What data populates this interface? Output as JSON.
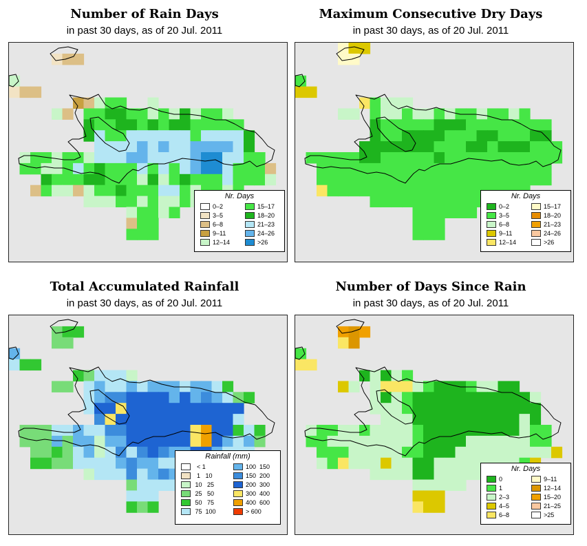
{
  "panels": [
    {
      "title": "Number of Rain Days",
      "subtitle": "in past 30 days, as of  20 Jul. 2011",
      "legend": {
        "title": "Nr. Days",
        "entries": [
          {
            "label": "0–2",
            "color": "#ffffff"
          },
          {
            "label": "3–5",
            "color": "#f2e3c4"
          },
          {
            "label": "6–8",
            "color": "#dcbf86"
          },
          {
            "label": "9–11",
            "color": "#c8a040"
          },
          {
            "label": "12–14",
            "color": "#c8f5c8"
          },
          {
            "label": "15–17",
            "color": "#46e646"
          },
          {
            "label": "18–20",
            "color": "#1eb41e"
          },
          {
            "label": "21–23",
            "color": "#b4e6f5"
          },
          {
            "label": "24–26",
            "color": "#64b4eb"
          },
          {
            "label": ">26",
            "color": "#1e8cd2"
          }
        ]
      },
      "palette": {
        "g": "#46e646",
        "G": "#1eb41e",
        "l": "#c8f5c8",
        "b": "#b4e6f5",
        "B": "#64b4eb",
        "D": "#1e8cd2",
        "t": "#f2e3c4",
        "T": "#dcbf86",
        "o": "#c8a040"
      },
      "grid": [
        "..........................",
        "....tTT...................",
        "..........................",
        "l.........................",
        "tTT.......................",
        "......oTlgg..l............",
        "....lT.ggGGgglglGlggl.....",
        ".......GggGGgGgGGggggg....",
        ".......GbggbbbbbbgbbbbG...",
        "........bbbbBbBbbBBBBbG...",
        ".lgglgglbbbBBbbbbBDDbbgg..",
        ".ggllgbgGgggbgbgbBDDbgggT.",
        "...GgggGGggglGlgGgggbgggl.",
        "..TgllTlggGgggbbglgglg....",
        ".......lllgglgllglg.......",
        "...........lgglg..........",
        "...........Tgg............",
        "...........ggg............",
        "..........................",
        ".........................."
      ]
    },
    {
      "title": "Maximum Consecutive Dry Days",
      "subtitle": "in past 30 days, as of  20 Jul. 2011",
      "legend": {
        "title": "Nr. Days",
        "entries": [
          {
            "label": "0–2",
            "color": "#1eb41e"
          },
          {
            "label": "3–5",
            "color": "#46e646"
          },
          {
            "label": "6–8",
            "color": "#c8f5c8"
          },
          {
            "label": "9–11",
            "color": "#dcc800"
          },
          {
            "label": "12–14",
            "color": "#fae664"
          },
          {
            "label": "15–17",
            "color": "#fffac8"
          },
          {
            "label": "18–20",
            "color": "#e68c00"
          },
          {
            "label": "21–23",
            "color": "#f0a000"
          },
          {
            "label": "24–26",
            "color": "#fac8a0"
          },
          {
            "label": ">26",
            "color": "#ffffff"
          }
        ]
      },
      "palette": {
        "g": "#46e646",
        "G": "#1eb41e",
        "l": "#c8f5c8",
        "y": "#dcc800",
        "Y": "#fae664",
        "p": "#fffac8"
      },
      "grid": [
        "....pyy...................",
        "....pp....................",
        "..........................",
        "g.........................",
        "yy........................",
        "......Yglll...............",
        "....ll.gllgllglgglgglg....",
        ".......GgggggGGGgggggggg..",
        ".......GggGGGGgggGGgggGG..",
        "......GGGGGGGgggGGgGGGggg.",
        ".gggggGGgggggGggggggggggg.",
        "..gggggggggggggggggggggg..",
        "..gggggggggggggggggggggg..",
        "..Yggggggggggggggggggg....",
        ".......gggggggggggggg.....",
        "...........gggggg.........",
        "...........ggg............",
        "...........ggg............",
        "..........................",
        ".........................."
      ]
    },
    {
      "title": "Total Accumulated Rainfall",
      "subtitle": "in past 30 days, as of  20 Jul. 2011",
      "legend": {
        "title": "Rainfall (mm)",
        "entries": [
          {
            "label": "  < 1",
            "color": "#ffffff"
          },
          {
            "label": "  1   10",
            "color": "#f2e3c4"
          },
          {
            "label": " 10   25",
            "color": "#c8f5c8"
          },
          {
            "label": " 25   50",
            "color": "#78dc78"
          },
          {
            "label": " 50   75",
            "color": "#32c832"
          },
          {
            "label": " 75  100",
            "color": "#b4e6f5"
          },
          {
            "label": "100  150",
            "color": "#64b4eb"
          },
          {
            "label": "150  200",
            "color": "#3c8cdc"
          },
          {
            "label": "200  300",
            "color": "#1e64d2"
          },
          {
            "label": "300  400",
            "color": "#fae664"
          },
          {
            "label": "400  600",
            "color": "#f0a000"
          },
          {
            "label": "> 600",
            "color": "#f03c00"
          }
        ]
      },
      "palette": {
        "m": "#78dc78",
        "g": "#32c832",
        "l": "#c8f5c8",
        "b": "#b4e6f5",
        "B": "#64b4eb",
        "C": "#3c8cdc",
        "D": "#1e64d2",
        "y": "#fae664",
        "o": "#f0a000"
      },
      "grid": [
        "..........................",
        "....mgg...................",
        "....mm....................",
        "B.........................",
        "bgg.......................",
        "......gmbbbl..............",
        "....mm.bBbbBbBBBbBBbg.....",
        ".......bBCCDDDDBDBCBbmg...",
        ".......bDDyDDDDDDDDDDD....",
        "........CyDDDDDDDDDDDb....",
        ".mmmbbBbbCCDDDDDDyoDDgbg..",
        ".mmmBmBBlBBDDDDDDyoDBbBm..",
        "..mmgmbBlbCbCDCBBDDBbbb...",
        "..ggmmbbbbBCBBbbCBBb......",
        ".......lbbbCbBCBbbb.......",
        "...........mbbbb..........",
        "...........bbb............",
        "...........gmg............",
        "..........................",
        ".........................."
      ]
    },
    {
      "title": "Number of Days Since Rain",
      "subtitle": "in past 30 days, as of  20 Jul. 2011",
      "legend": {
        "title": "Nr. Days",
        "entries": [
          {
            "label": "0",
            "color": "#1eb41e"
          },
          {
            "label": "1",
            "color": "#46e646"
          },
          {
            "label": "2–3",
            "color": "#c8f5c8"
          },
          {
            "label": "4–5",
            "color": "#dcc800"
          },
          {
            "label": "6–8",
            "color": "#fae664"
          },
          {
            "label": "9–11",
            "color": "#fffac8"
          },
          {
            "label": "12–14",
            "color": "#dc9600"
          },
          {
            "label": "15–20",
            "color": "#f0a000"
          },
          {
            "label": "21–25",
            "color": "#fac8a0"
          },
          {
            "label": ">25",
            "color": "#ffffff"
          }
        ]
      },
      "palette": {
        "g": "#46e646",
        "G": "#1eb41e",
        "l": "#c8f5c8",
        "y": "#dcc800",
        "Y": "#fae664",
        "o": "#dc9600",
        "O": "#f0a000"
      },
      "grid": [
        "..........................",
        "....OoO...................",
        "....Yo....................",
        "g.........................",
        "YY........................",
        "......GlGlg...............",
        "....yl.lYYYlgGGGgllGG.....",
        ".......lGlgGGGGGGGGGGGl...",
        ".......lllgGGGGGGGGGGGG...",
        "........lllGGGGGGGGGGlG...",
        ".lggllgllllgGGGGGGGGGlgg..",
        ".ggllllllllgGGGGllllllgg..",
        "..ggglllllggGGGllllllllly.",
        "..lgYlllyllGGllllllllgy...",
        ".......llllGGllllllll.....",
        "...........lllll..........",
        "...........yyy............",
        "...........Yyy............",
        "..........................",
        ".........................."
      ]
    }
  ]
}
